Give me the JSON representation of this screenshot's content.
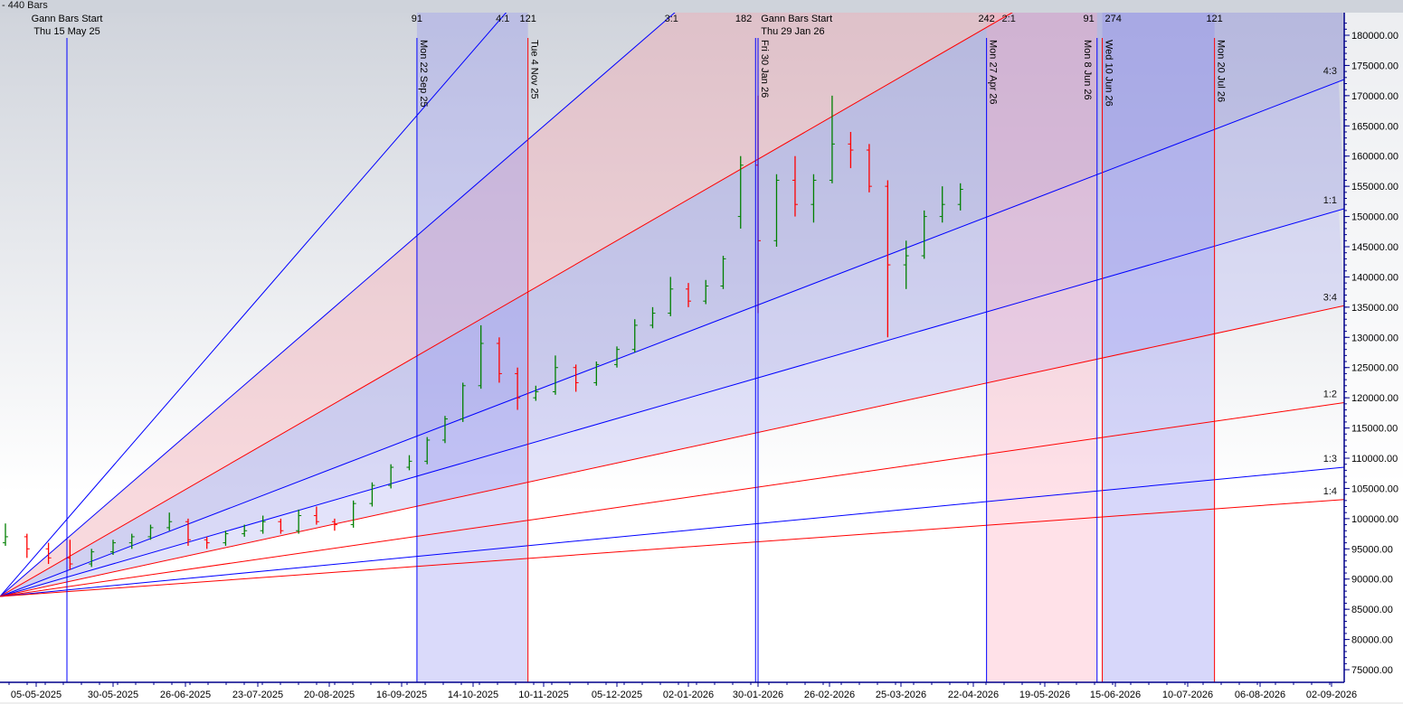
{
  "header": {
    "bars_label": "- 440 Bars"
  },
  "colors": {
    "blue": "#0000ff",
    "red": "#ff0000",
    "up_bar": "#008000",
    "down_bar": "#ff0000",
    "neutral_bar": "#000000",
    "axis": "#00008b"
  },
  "gann_fan": [
    {
      "label": "4:1",
      "ratio": 4,
      "color": "#0000ff"
    },
    {
      "label": "3:1",
      "ratio": 3,
      "color": "#0000ff"
    },
    {
      "label": "2:1",
      "ratio": 2,
      "color": "#ff0000"
    },
    {
      "label": "4:3",
      "ratio": 1.3333,
      "color": "#0000ff"
    },
    {
      "label": "1:1",
      "ratio": 1,
      "color": "#0000ff"
    },
    {
      "label": "3:4",
      "ratio": 0.75,
      "color": "#ff0000"
    },
    {
      "label": "1:2",
      "ratio": 0.5,
      "color": "#ff0000"
    },
    {
      "label": "1:3",
      "ratio": 0.3333,
      "color": "#0000ff"
    },
    {
      "label": "1:4",
      "ratio": 0.25,
      "color": "#ff0000"
    }
  ],
  "time_markers": [
    {
      "date": "2025-05-15",
      "label": "Thu 15 May 25",
      "title": "Gann Bars Start",
      "color": "#0000ff",
      "horizontal": true
    },
    {
      "date": "2025-09-22",
      "label": "Mon 22 Sep 25",
      "count": "91",
      "color": "#0000ff"
    },
    {
      "date": "2025-11-04",
      "label": "Tue 4 Nov 25",
      "count": "121",
      "color": "#ff0000"
    },
    {
      "date": "2026-01-29",
      "label": "Thu 29 Jan 26",
      "title": "Gann Bars Start",
      "count": "182",
      "color": "#0000ff",
      "horizontal": true
    },
    {
      "date": "2026-01-30",
      "label": "Fri 30 Jan 26",
      "color": "#0000ff"
    },
    {
      "date": "2026-04-27",
      "label": "Mon 27 Apr 26",
      "count": "242",
      "color": "#0000ff"
    },
    {
      "date": "2026-06-08",
      "label": "Mon 8 Jun 26",
      "count": "91",
      "color": "#0000ff"
    },
    {
      "date": "2026-06-10",
      "label": "Wed 10 Jun 26",
      "count": "274",
      "color": "#ff0000"
    },
    {
      "date": "2026-07-20",
      "label": "Mon 20 Jul 26",
      "count": "121",
      "color": "#ff0000"
    }
  ],
  "chart_data": {
    "type": "ohlc",
    "ylim": [
      73000,
      184000
    ],
    "y_ticks": [
      "180000.00",
      "175000.00",
      "170000.00",
      "165000.00",
      "160000.00",
      "155000.00",
      "150000.00",
      "145000.00",
      "140000.00",
      "135000.00",
      "130000.00",
      "125000.00",
      "120000.00",
      "115000.00",
      "110000.00",
      "105000.00",
      "100000.00",
      "95000.00",
      "90000.00",
      "85000.00",
      "80000.00",
      "75000.00"
    ],
    "x_ticks": [
      "05-05-2025",
      "30-05-2025",
      "26-06-2025",
      "23-07-2025",
      "20-08-2025",
      "16-09-2025",
      "14-10-2025",
      "10-11-2025",
      "05-12-2025",
      "02-01-2026",
      "30-01-2026",
      "26-02-2026",
      "25-03-2026",
      "22-04-2026",
      "19-05-2026",
      "15-06-2026",
      "10-07-2026",
      "06-08-2026",
      "02-09-2026"
    ],
    "bars": [
      [
        "2025-04-25",
        96000,
        99200,
        95500,
        97000
      ],
      [
        "2025-05-02",
        97000,
        97500,
        93500,
        95000
      ],
      [
        "2025-05-09",
        95000,
        96000,
        92500,
        93500
      ],
      [
        "2025-05-16",
        93500,
        96500,
        91500,
        92500
      ],
      [
        "2025-05-23",
        92500,
        95000,
        92000,
        94500
      ],
      [
        "2025-05-30",
        94500,
        96500,
        94000,
        96000
      ],
      [
        "2025-06-06",
        96000,
        97500,
        95000,
        97000
      ],
      [
        "2025-06-13",
        97000,
        99000,
        96500,
        98500
      ],
      [
        "2025-06-20",
        98500,
        101000,
        98000,
        99500
      ],
      [
        "2025-06-27",
        99500,
        100000,
        95500,
        96500
      ],
      [
        "2025-07-04",
        96500,
        97000,
        95000,
        96000
      ],
      [
        "2025-07-11",
        96000,
        98000,
        95500,
        97500
      ],
      [
        "2025-07-18",
        97500,
        99000,
        97000,
        98000
      ],
      [
        "2025-07-25",
        98000,
        100500,
        97500,
        99500
      ],
      [
        "2025-08-01",
        99500,
        100000,
        97500,
        98000
      ],
      [
        "2025-08-08",
        98000,
        101500,
        97500,
        100500
      ],
      [
        "2025-08-15",
        100500,
        102000,
        99000,
        99500
      ],
      [
        "2025-08-22",
        99500,
        100000,
        98000,
        99000
      ],
      [
        "2025-08-29",
        99000,
        103000,
        98500,
        102500
      ],
      [
        "2025-09-05",
        102500,
        106000,
        102000,
        105500
      ],
      [
        "2025-09-12",
        105500,
        109000,
        105000,
        108500
      ],
      [
        "2025-09-19",
        108500,
        110500,
        108000,
        109500
      ],
      [
        "2025-09-26",
        109500,
        113500,
        109000,
        113000
      ],
      [
        "2025-10-03",
        113000,
        117000,
        112500,
        116500
      ],
      [
        "2025-10-10",
        116500,
        122500,
        116000,
        122000
      ],
      [
        "2025-10-17",
        122000,
        132000,
        121500,
        129000
      ],
      [
        "2025-10-24",
        129000,
        130000,
        122500,
        124000
      ],
      [
        "2025-10-31",
        124000,
        125000,
        118000,
        120000
      ],
      [
        "2025-11-07",
        120000,
        122000,
        119500,
        121000
      ],
      [
        "2025-11-14",
        121000,
        127000,
        120500,
        125000
      ],
      [
        "2025-11-21",
        125000,
        125500,
        121000,
        122500
      ],
      [
        "2025-11-28",
        122500,
        126000,
        122000,
        125500
      ],
      [
        "2025-12-05",
        125500,
        128500,
        125000,
        128000
      ],
      [
        "2025-12-12",
        128000,
        133000,
        127500,
        132000
      ],
      [
        "2025-12-19",
        132000,
        135000,
        131500,
        134000
      ],
      [
        "2025-12-26",
        134000,
        140000,
        133500,
        138000
      ],
      [
        "2026-01-02",
        138000,
        139000,
        135000,
        136000
      ],
      [
        "2026-01-09",
        136000,
        139500,
        135500,
        138500
      ],
      [
        "2026-01-16",
        138500,
        143500,
        138000,
        143000
      ],
      [
        "2026-01-23",
        150000,
        160000,
        148000,
        158500
      ],
      [
        "2026-01-30",
        158500,
        170000,
        134000,
        146000
      ],
      [
        "2026-02-06",
        146000,
        157000,
        145000,
        156000
      ],
      [
        "2026-02-13",
        156000,
        160000,
        150000,
        152000
      ],
      [
        "2026-02-20",
        152000,
        157000,
        149000,
        156000
      ],
      [
        "2026-02-27",
        156000,
        170000,
        155500,
        162000
      ],
      [
        "2026-03-06",
        162000,
        164000,
        158000,
        161000
      ],
      [
        "2026-03-13",
        161000,
        162000,
        154000,
        155000
      ],
      [
        "2026-03-20",
        155000,
        156000,
        130000,
        142000
      ],
      [
        "2026-03-27",
        142000,
        146000,
        138000,
        143500
      ],
      [
        "2026-04-03",
        143500,
        151000,
        143000,
        150000
      ],
      [
        "2026-04-10",
        150000,
        155000,
        149000,
        152000
      ],
      [
        "2026-04-17",
        152000,
        155500,
        151000,
        154500
      ]
    ]
  }
}
